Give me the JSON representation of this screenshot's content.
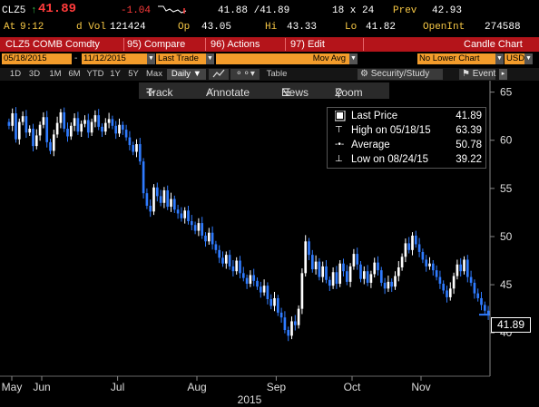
{
  "header": {
    "ticker": "CLZ5",
    "arrow": "↑",
    "last": "41.89",
    "change": "-1.04",
    "bid_ask": "41.88 /41.89",
    "size": "18 x 24",
    "prev_label": "Prev",
    "prev": "42.93",
    "time_label": "At",
    "time": "9:12",
    "vol_label": "d Vol",
    "vol": "121424",
    "op_label": "Op",
    "op": "43.05",
    "hi_label": "Hi",
    "hi": "43.33",
    "lo_label": "Lo",
    "lo": "41.82",
    "oi_label": "OpenInt",
    "oi": "274588"
  },
  "menubar": {
    "security": "CLZ5 COMB Comdty",
    "compare": "95) Compare",
    "actions": "96) Actions",
    "edit": "97) Edit",
    "chart_type": "Candle Chart"
  },
  "inputs": {
    "start_date": "05/18/2015",
    "end_date": "11/12/2015",
    "field": "Last Trade",
    "mov_avg": "Mov Avg",
    "security_study": "Security/Study",
    "lower_chart": "No Lower Chart",
    "currency": "USD"
  },
  "periods": [
    "1D",
    "3D",
    "1M",
    "6M",
    "YTD",
    "1Y",
    "5Y",
    "Max"
  ],
  "frequency": "Daily ▼",
  "table_label": "Table",
  "event_label": "Event",
  "toolbar": {
    "track": "Track",
    "annotate": "Annotate",
    "news": "News",
    "zoom": "Zoom"
  },
  "legend": {
    "last_price_label": "Last Price",
    "last_price": "41.89",
    "high_label": "High on 05/18/15",
    "high": "63.39",
    "avg_label": "Average",
    "avg": "50.78",
    "low_label": "Low on 08/24/15",
    "low": "39.22"
  },
  "colors": {
    "menubar": "#b4141a",
    "input_box": "#f39c2b",
    "up_candle": "#ffffff",
    "down_candle": "#2f7bff",
    "price_label": "#f7c845",
    "change": "#ff3b3b"
  },
  "chart_data": {
    "type": "candlestick",
    "ylim": [
      35.5,
      66
    ],
    "yticks": [
      40,
      45,
      50,
      55,
      60,
      65
    ],
    "xlabels": [
      "May",
      "Jun",
      "Jul",
      "Aug",
      "Sep",
      "Oct",
      "Nov"
    ],
    "year_label": "2015",
    "last_value_label": "41.89",
    "closes": [
      61.5,
      62.8,
      60.1,
      61.9,
      62.5,
      60.8,
      61.2,
      59.4,
      60.5,
      61.6,
      62.4,
      59.8,
      58.9,
      60.6,
      61.8,
      62.9,
      61.2,
      60.4,
      61.5,
      62.3,
      60.9,
      61.7,
      62.1,
      60.8,
      61.9,
      62.6,
      61.4,
      60.9,
      61.8,
      62.2,
      61.5,
      60.7,
      61.6,
      61.1,
      60.3,
      59.5,
      58.8,
      59.6,
      57.8,
      54.5,
      53.2,
      52.6,
      55.1,
      54.2,
      53.5,
      54.8,
      53.1,
      53.9,
      52.8,
      52.4,
      51.9,
      52.7,
      51.6,
      51.2,
      50.6,
      51.4,
      50.1,
      49.5,
      50.4,
      49.2,
      48.6,
      47.8,
      47.2,
      48.1,
      46.9,
      46.4,
      47.5,
      46.2,
      45.7,
      45.1,
      46.0,
      45.4,
      44.8,
      44.2,
      44.9,
      43.5,
      42.8,
      43.6,
      42.1,
      41.6,
      40.3,
      39.7,
      41.2,
      40.8,
      42.5,
      46.2,
      49.5,
      48.1,
      46.6,
      47.4,
      45.8,
      46.9,
      45.5,
      44.9,
      46.3,
      45.1,
      47.2,
      46.4,
      45.3,
      46.9,
      48.2,
      47.1,
      45.6,
      46.4,
      45.2,
      46.1,
      47.3,
      46.5,
      45.2,
      44.6,
      45.3,
      44.8,
      45.9,
      46.8,
      47.9,
      49.3,
      48.6,
      50.1,
      49.2,
      48.4,
      47.6,
      46.9,
      47.2,
      46.5,
      45.8,
      45.1,
      44.4,
      43.7,
      44.6,
      45.9,
      47.1,
      46.4,
      47.6,
      45.8,
      45.2,
      44.1,
      43.6,
      42.9,
      42.3,
      41.89
    ]
  }
}
